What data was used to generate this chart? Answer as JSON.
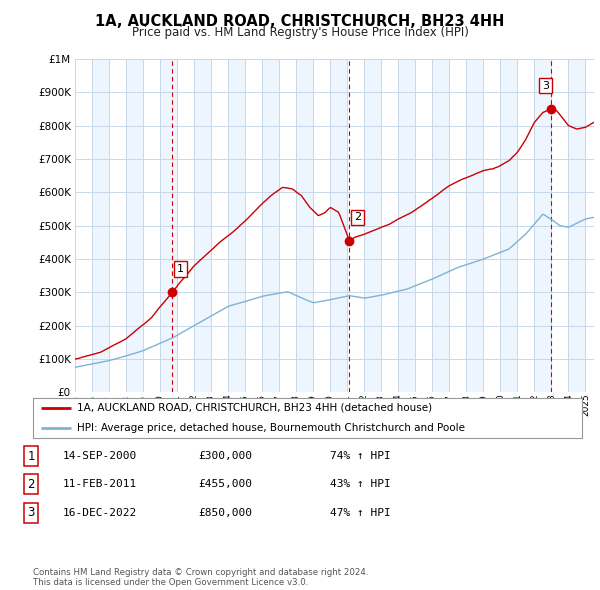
{
  "title": "1A, AUCKLAND ROAD, CHRISTCHURCH, BH23 4HH",
  "subtitle": "Price paid vs. HM Land Registry's House Price Index (HPI)",
  "ylim": [
    0,
    1000000
  ],
  "yticks": [
    0,
    100000,
    200000,
    300000,
    400000,
    500000,
    600000,
    700000,
    800000,
    900000,
    1000000
  ],
  "xmin": 1995.0,
  "xmax": 2025.5,
  "sale_dates": [
    2000.71,
    2011.12,
    2022.96
  ],
  "sale_prices": [
    300000,
    455000,
    850000
  ],
  "sale_labels": [
    "1",
    "2",
    "3"
  ],
  "red_line_color": "#cc0000",
  "blue_line_color": "#7fb3d3",
  "dashed_red_color": "#cc0000",
  "panel_color": "#ddeeff",
  "legend_entries": [
    "1A, AUCKLAND ROAD, CHRISTCHURCH, BH23 4HH (detached house)",
    "HPI: Average price, detached house, Bournemouth Christchurch and Poole"
  ],
  "table_rows": [
    [
      "1",
      "14-SEP-2000",
      "£300,000",
      "74% ↑ HPI"
    ],
    [
      "2",
      "11-FEB-2011",
      "£455,000",
      "43% ↑ HPI"
    ],
    [
      "3",
      "16-DEC-2022",
      "£850,000",
      "47% ↑ HPI"
    ]
  ],
  "footer": "Contains HM Land Registry data © Crown copyright and database right 2024.\nThis data is licensed under the Open Government Licence v3.0.",
  "background_color": "#ffffff",
  "grid_color": "#c8d8e8"
}
